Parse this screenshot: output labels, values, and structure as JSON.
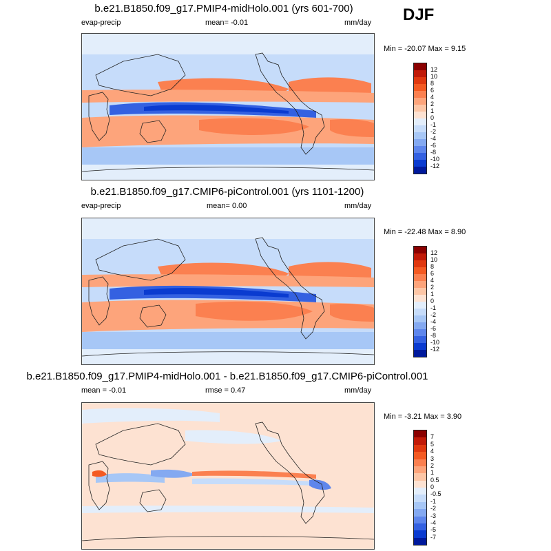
{
  "season": "DJF",
  "panels": [
    {
      "title": "b.e21.B1850.f09_g17.PMIP4-midHolo.001 (yrs 601-700)",
      "left_label": "evap-precip",
      "center_label": "mean=  -0.01",
      "right_label": "mm/day",
      "minmax": "Min = -20.07 Max =   9.15",
      "colorbar": {
        "labels": [
          "12",
          "10",
          "8",
          "6",
          "4",
          "2",
          "1",
          "0",
          "-1",
          "-2",
          "-4",
          "-6",
          "-8",
          "-10",
          "-12"
        ],
        "colors": [
          "#8b0000",
          "#c11a08",
          "#e0380f",
          "#f45a22",
          "#fb8050",
          "#fda47b",
          "#fdc6a6",
          "#fde2d2",
          "#e3eefb",
          "#c6dcfa",
          "#a7c7f6",
          "#84a9f1",
          "#5e86ec",
          "#3461e1",
          "#0a3bd0",
          "#00199c"
        ]
      }
    },
    {
      "title": "b.e21.B1850.f09_g17.CMIP6-piControl.001 (yrs 1101-1200)",
      "left_label": "evap-precip",
      "center_label": "mean=   0.00",
      "right_label": "mm/day",
      "minmax": "Min = -22.48 Max =   8.90",
      "colorbar": {
        "labels": [
          "12",
          "10",
          "8",
          "6",
          "4",
          "2",
          "1",
          "0",
          "-1",
          "-2",
          "-4",
          "-6",
          "-8",
          "-10",
          "-12"
        ],
        "colors": [
          "#8b0000",
          "#c11a08",
          "#e0380f",
          "#f45a22",
          "#fb8050",
          "#fda47b",
          "#fdc6a6",
          "#fde2d2",
          "#e3eefb",
          "#c6dcfa",
          "#a7c7f6",
          "#84a9f1",
          "#5e86ec",
          "#3461e1",
          "#0a3bd0",
          "#00199c"
        ]
      }
    },
    {
      "title": "b.e21.B1850.f09_g17.PMIP4-midHolo.001 - b.e21.B1850.f09_g17.CMIP6-piControl.001",
      "left_label": "mean =  -0.01",
      "center_label": "rmse =   0.47",
      "right_label": "mm/day",
      "minmax": "Min =  -3.21 Max =   3.90",
      "colorbar": {
        "labels": [
          "7",
          "5",
          "4",
          "3",
          "2",
          "1",
          "0.5",
          "0",
          "-0.5",
          "-1",
          "-2",
          "-3",
          "-4",
          "-5",
          "-7"
        ],
        "colors": [
          "#8b0000",
          "#c11a08",
          "#e0380f",
          "#f45a22",
          "#fb8050",
          "#fda47b",
          "#fdc6a6",
          "#fde2d2",
          "#e3eefb",
          "#c6dcfa",
          "#a7c7f6",
          "#84a9f1",
          "#5e86ec",
          "#3461e1",
          "#0a3bd0",
          "#00199c"
        ]
      }
    }
  ]
}
